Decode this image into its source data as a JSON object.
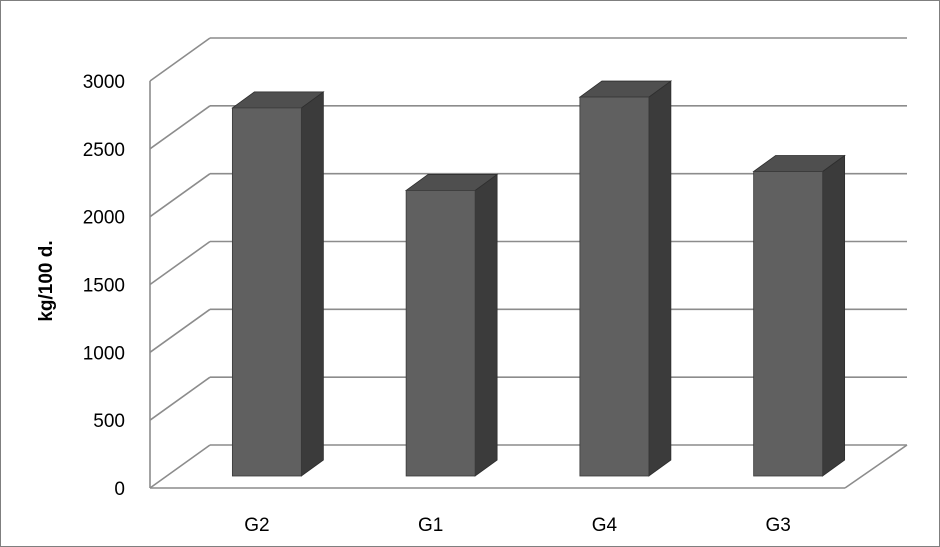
{
  "chart_data": {
    "type": "bar",
    "style": "3d-column",
    "categories": [
      "G2",
      "G1",
      "G4",
      "G3"
    ],
    "values": [
      2720,
      2110,
      2800,
      2250
    ],
    "title": "",
    "xlabel": "",
    "ylabel": "kg/100 d.",
    "ylim": [
      0,
      3000
    ],
    "yticks": [
      0,
      500,
      1000,
      1500,
      2000,
      2500,
      3000
    ],
    "grid": true,
    "legend": "none",
    "colors": {
      "bar_front": "#606060",
      "bar_top": "#4f4f4f",
      "bar_side": "#3b3b3b",
      "grid": "#8c8c8c",
      "frame": "#7f7f7f"
    }
  }
}
